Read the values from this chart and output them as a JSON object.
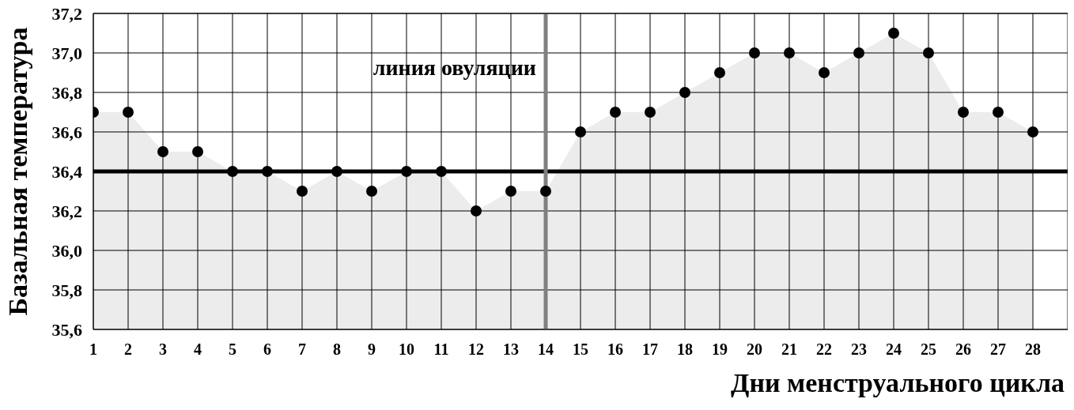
{
  "chart_data": {
    "type": "area",
    "xlabel": "Дни менструального цикла",
    "ylabel": "Базальная температура",
    "x": [
      1,
      2,
      3,
      4,
      5,
      6,
      7,
      8,
      9,
      10,
      11,
      12,
      13,
      14,
      15,
      16,
      17,
      18,
      19,
      20,
      21,
      22,
      23,
      24,
      25,
      26,
      27,
      28
    ],
    "series": [
      {
        "color": "#ececec",
        "values": [
          36.7,
          36.7,
          36.5,
          36.5,
          36.4,
          36.4,
          36.3,
          36.4,
          36.3,
          36.4,
          36.4,
          36.2,
          36.3,
          36.3,
          36.6,
          36.7,
          36.7,
          36.8,
          36.9,
          37.0,
          37.0,
          36.9,
          37.0,
          37.1,
          37.0,
          36.7,
          36.7,
          36.6
        ]
      },
      {
        "type": "scatter",
        "color": "#000000",
        "marker": "circle",
        "values": [
          36.7,
          36.7,
          36.5,
          36.5,
          36.4,
          36.4,
          36.3,
          36.4,
          36.3,
          36.4,
          36.4,
          36.2,
          36.3,
          36.3,
          36.6,
          36.7,
          36.7,
          36.8,
          36.9,
          37.0,
          37.0,
          36.9,
          37.0,
          37.1,
          37.0,
          36.7,
          36.7,
          36.6
        ]
      }
    ],
    "xlim": [
      1,
      29
    ],
    "xticks": [
      1,
      2,
      3,
      4,
      5,
      6,
      7,
      8,
      9,
      10,
      11,
      12,
      13,
      14,
      15,
      16,
      17,
      18,
      19,
      20,
      21,
      22,
      23,
      24,
      25,
      26,
      27,
      28
    ],
    "ylim": [
      35.6,
      37.2
    ],
    "yticks": [
      {
        "value": 35.6,
        "label": "35,6"
      },
      {
        "value": 35.8,
        "label": "35,8"
      },
      {
        "value": 36.0,
        "label": "36,0"
      },
      {
        "value": 36.2,
        "label": "36,2"
      },
      {
        "value": 36.4,
        "label": "36,4"
      },
      {
        "value": 36.6,
        "label": "36,6"
      },
      {
        "value": 36.8,
        "label": "36,8"
      },
      {
        "value": 37.0,
        "label": "37,0"
      },
      {
        "value": 37.2,
        "label": "37,2"
      }
    ],
    "ref_lines": [
      {
        "axis": "y",
        "value": 36.4,
        "color": "#000000"
      },
      {
        "axis": "x",
        "value": 14,
        "label": "линия овуляции",
        "color": "#808080"
      }
    ],
    "grid": true,
    "legend": false
  }
}
